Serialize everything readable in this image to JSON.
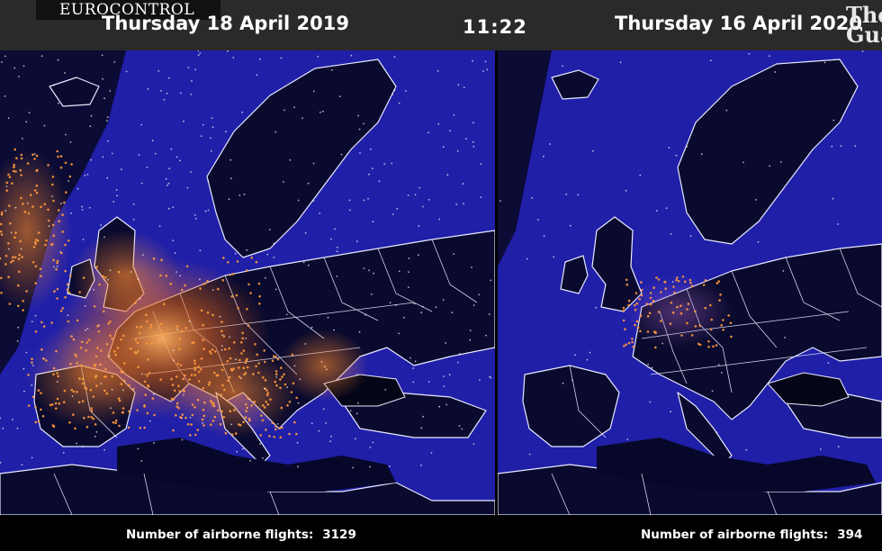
{
  "header": {
    "logo_text": "EUROCONTROL",
    "left_date": "Thursday 18 April 2019",
    "right_date": "Thursday 16 April 2020",
    "clock": "11:22",
    "watermark": "The Guardian"
  },
  "footer": {
    "left_label": "Number of airborne flights:",
    "left_value": "3129",
    "right_label": "Number of airborne flights:",
    "right_value": "394"
  },
  "colors": {
    "sea": "#1f1fa8",
    "land_dark": "#0a0a2e",
    "border_line": "#e8eaff",
    "flight_glow_dense": "#ff9a3c",
    "flight_glow_sparse": "#ffffff"
  },
  "icons": [
    "eurocontrol-logo",
    "guardian-logo"
  ]
}
